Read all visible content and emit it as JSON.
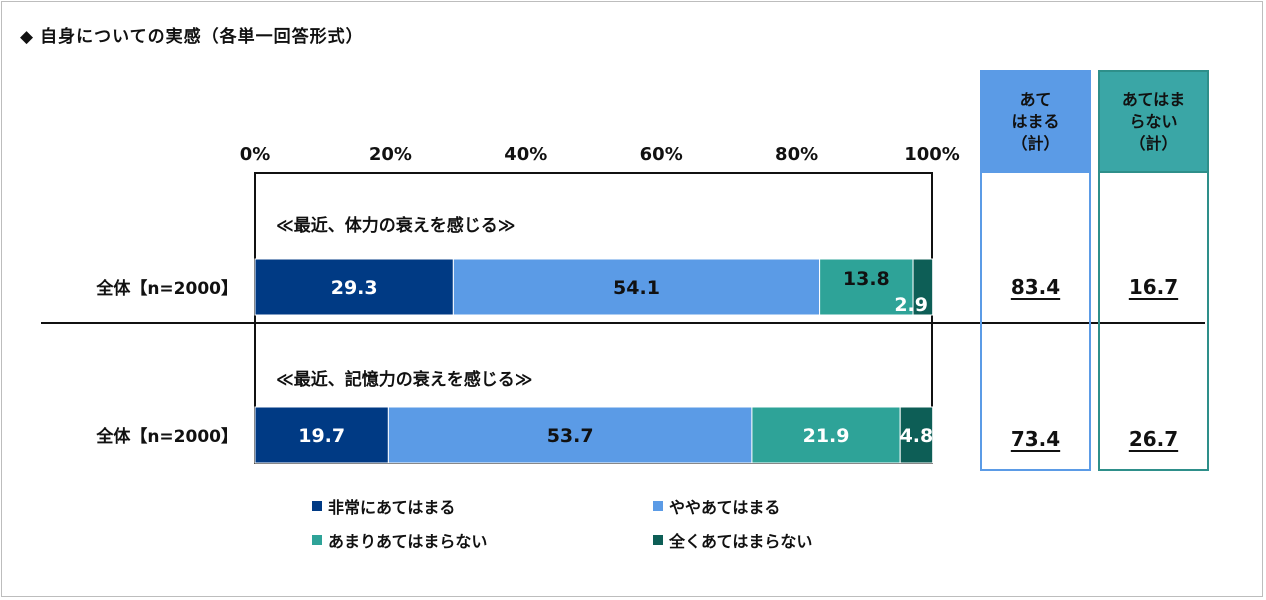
{
  "title": "自身についての実感（各単一回答形式）",
  "title_marker": "◆",
  "colors": {
    "very": "#003a84",
    "somewhat": "#5b9be6",
    "not_much": "#2ea398",
    "not_at_all": "#0d5e56",
    "sum_yes_border": "#5b9be6",
    "sum_yes_head": "#5b9be6",
    "sum_no_border": "#2e8f8a",
    "sum_no_head": "#3aa6a6"
  },
  "summary": {
    "yes_header": [
      "あて",
      "はまる",
      "（計）"
    ],
    "no_header": [
      "あてはま",
      "らない",
      "（計）"
    ],
    "rows": [
      {
        "yes": "83.4",
        "no": "16.7"
      },
      {
        "yes": "73.4",
        "no": "26.7"
      }
    ]
  },
  "chart_data": {
    "type": "bar",
    "orientation": "horizontal",
    "stacked": true,
    "xlim": [
      0,
      100
    ],
    "x_ticks": [
      "0%",
      "20%",
      "40%",
      "60%",
      "80%",
      "100%"
    ],
    "rows": [
      {
        "caption": "≪最近、体力の衰えを感じる≫",
        "label": "全体【n=2000】"
      },
      {
        "caption": "≪最近、記憶力の衰えを感じる≫",
        "label": "全体【n=2000】"
      }
    ],
    "series": [
      {
        "name": "非常にあてはまる",
        "color_key": "very",
        "values": [
          29.3,
          19.7
        ]
      },
      {
        "name": "ややあてはまる",
        "color_key": "somewhat",
        "values": [
          54.1,
          53.7
        ]
      },
      {
        "name": "あまりあてはまらない",
        "color_key": "not_much",
        "values": [
          13.8,
          21.9
        ]
      },
      {
        "name": "全くあてはまらない",
        "color_key": "not_at_all",
        "values": [
          2.9,
          4.8
        ]
      }
    ],
    "legend_position": "bottom"
  }
}
